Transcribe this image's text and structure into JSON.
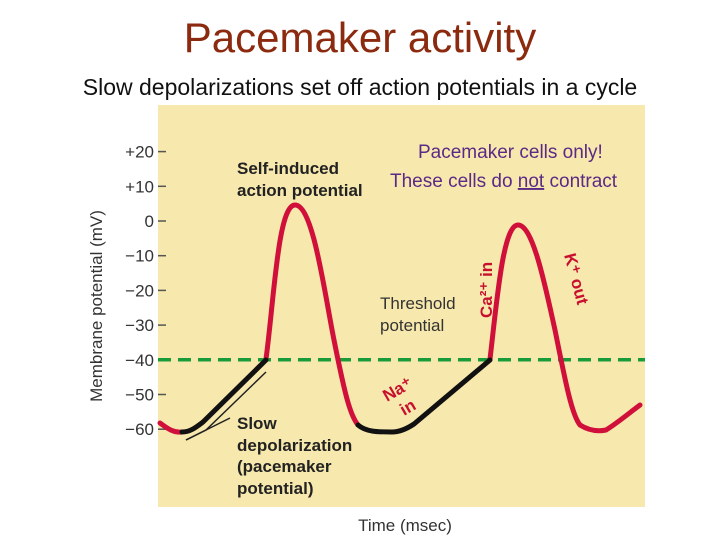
{
  "slide": {
    "title": "Pacemaker activity",
    "subtitle": "Slow depolarizations set off action potentials in a cycle",
    "note_line1": "Pacemaker cells only!",
    "note_line2_prefix": "These cells do ",
    "note_line2_emph": "not",
    "note_line2_suffix": " contract"
  },
  "chart_data": {
    "type": "line",
    "xlabel": "Time (msec)",
    "ylabel": "Membrane potential (mV)",
    "ylim": [
      -66,
      34
    ],
    "y_ticks": [
      {
        "value": 20,
        "label": "+20"
      },
      {
        "value": 10,
        "label": "+10"
      },
      {
        "value": 0,
        "label": "0"
      },
      {
        "value": -10,
        "label": "−10"
      },
      {
        "value": -20,
        "label": "−20"
      },
      {
        "value": -30,
        "label": "−30"
      },
      {
        "value": -40,
        "label": "−40"
      },
      {
        "value": -50,
        "label": "−50"
      },
      {
        "value": -60,
        "label": "−60"
      }
    ],
    "threshold": -40,
    "colors": {
      "background": "#f7e8ad",
      "action_potential": "#d0103a",
      "pacemaker_potential": "#111111",
      "threshold": "#1a9b3a",
      "note": "#5b2a86"
    },
    "annotations": {
      "self_induced_line1": "Self-induced",
      "self_induced_line2": "action potential",
      "threshold_line1": "Threshold",
      "threshold_line2": "potential",
      "ca_in": "Ca²⁺ in",
      "k_out": "K⁺ out",
      "na_in_line1": "Na⁺",
      "na_in_line2": "in",
      "slow_line1": "Slow",
      "slow_line2": "depolarization",
      "slow_line3": "(pacemaker",
      "slow_line4": "potential)"
    }
  }
}
